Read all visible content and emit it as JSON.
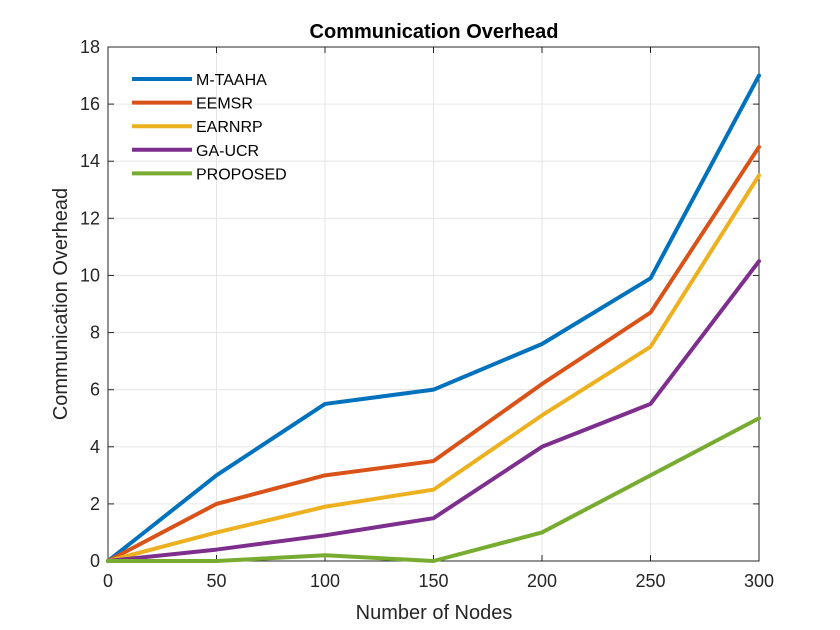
{
  "chart_data": {
    "type": "line",
    "title": "Communication Overhead",
    "xlabel": "Number of Nodes",
    "ylabel": "Communication Overhead",
    "x": [
      0,
      50,
      100,
      150,
      200,
      250,
      300
    ],
    "xlim": [
      0,
      300
    ],
    "ylim": [
      0,
      18
    ],
    "xticks": [
      "0",
      "50",
      "100",
      "150",
      "200",
      "250",
      "300"
    ],
    "yticks": [
      "0",
      "2",
      "4",
      "6",
      "8",
      "10",
      "12",
      "14",
      "16",
      "18"
    ],
    "grid": true,
    "legend_position": "top-left",
    "series": [
      {
        "name": "M-TAAHA",
        "color": "#0072BD",
        "values": [
          0,
          3,
          5.5,
          6,
          7.6,
          9.9,
          17
        ]
      },
      {
        "name": "EEMSR",
        "color": "#D95319",
        "values": [
          0,
          2,
          3,
          3.5,
          6.2,
          8.7,
          14.5
        ]
      },
      {
        "name": "EARNRP",
        "color": "#EDB120",
        "values": [
          0,
          1,
          1.9,
          2.5,
          5.1,
          7.5,
          13.5
        ]
      },
      {
        "name": "GA-UCR",
        "color": "#7E2F8E",
        "values": [
          0,
          0.4,
          0.9,
          1.5,
          4,
          5.5,
          10.5
        ]
      },
      {
        "name": "PROPOSED",
        "color": "#77AC30",
        "values": [
          0,
          0,
          0.2,
          0,
          1,
          3,
          5
        ]
      }
    ]
  }
}
